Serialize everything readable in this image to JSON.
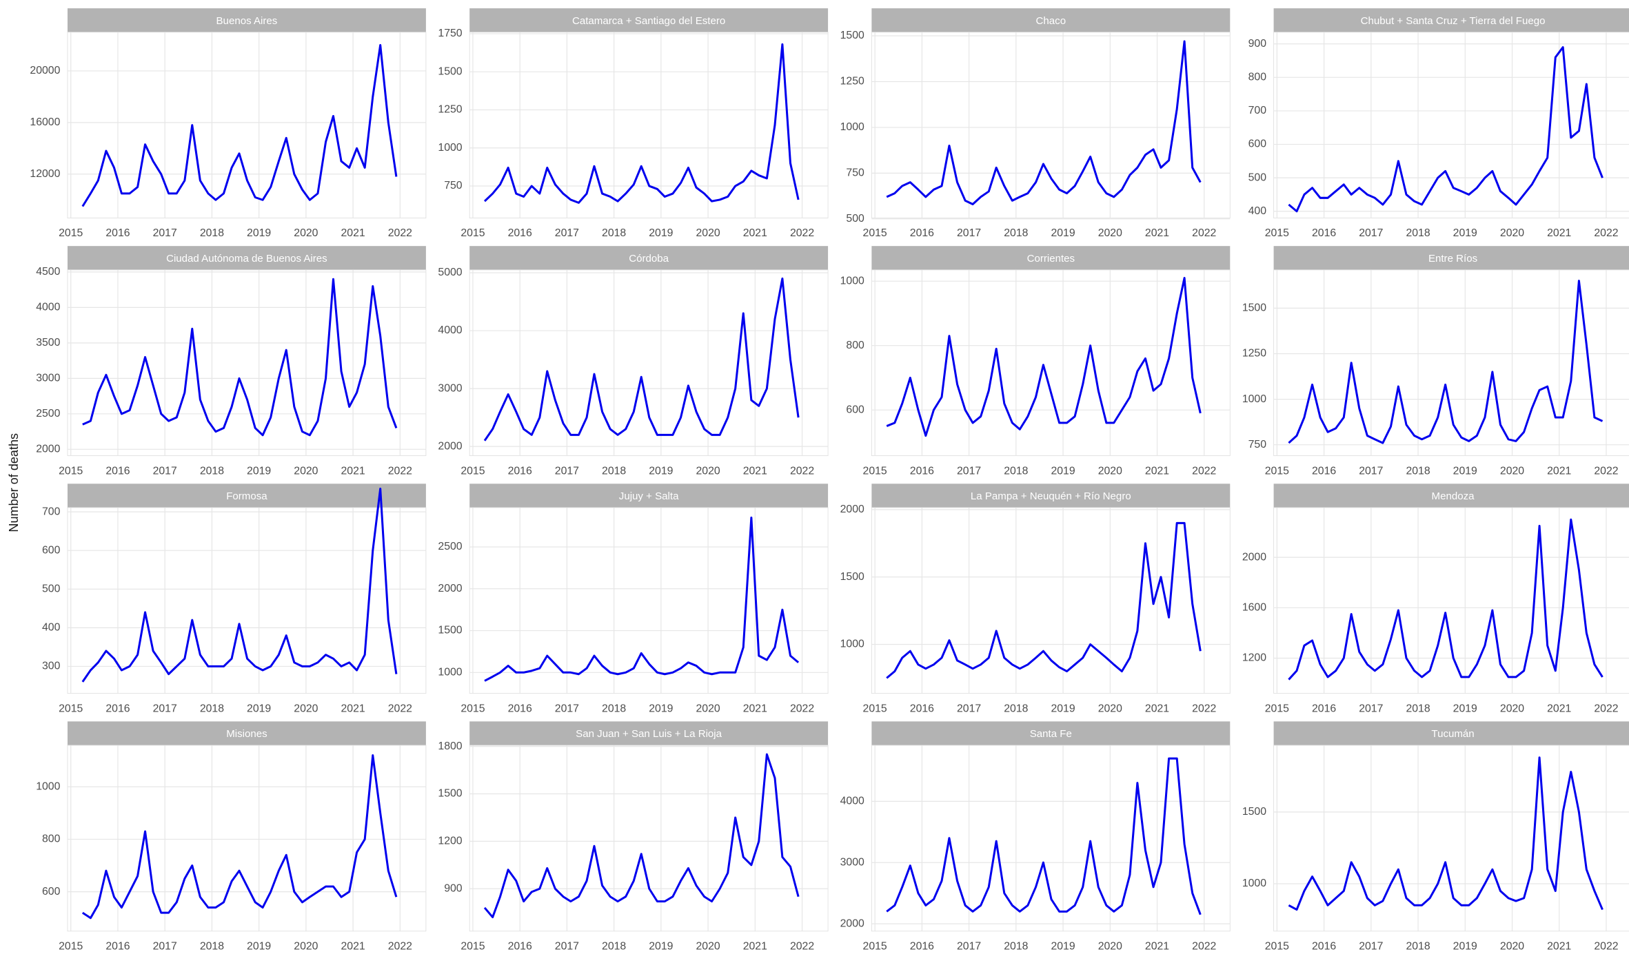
{
  "chart_data": {
    "type": "line",
    "y_label": "Number of deaths",
    "color": "#0000ee",
    "grid": true,
    "x": [
      2015.25,
      2015.42,
      2015.58,
      2015.75,
      2015.92,
      2016.08,
      2016.25,
      2016.42,
      2016.58,
      2016.75,
      2016.92,
      2017.08,
      2017.25,
      2017.42,
      2017.58,
      2017.75,
      2017.92,
      2018.08,
      2018.25,
      2018.42,
      2018.58,
      2018.75,
      2018.92,
      2019.08,
      2019.25,
      2019.42,
      2019.58,
      2019.75,
      2019.92,
      2020.08,
      2020.25,
      2020.42,
      2020.58,
      2020.75,
      2020.92,
      2021.08,
      2021.25,
      2021.42,
      2021.58,
      2021.75,
      2021.92
    ],
    "xlim": [
      2014.93,
      2022.55
    ],
    "xticks": [
      2015,
      2016,
      2017,
      2018,
      2019,
      2020,
      2021,
      2022
    ],
    "panels": [
      {
        "title": "Buenos Aires",
        "ylim": [
          8600,
          23000
        ],
        "yticks": [
          12000,
          16000,
          20000
        ],
        "values": [
          9500,
          10500,
          11500,
          13800,
          12500,
          10500,
          10500,
          11000,
          14300,
          13000,
          12000,
          10500,
          10500,
          11500,
          15800,
          11500,
          10500,
          10000,
          10500,
          12500,
          13600,
          11500,
          10200,
          10000,
          11000,
          13000,
          14800,
          12000,
          10800,
          10000,
          10500,
          14500,
          16500,
          13000,
          12500,
          14000,
          12500,
          18000,
          22000,
          16000,
          11800
        ]
      },
      {
        "title": "Catamarca + Santiago del Estero",
        "ylim": [
          540,
          1760
        ],
        "yticks": [
          750,
          1000,
          1250,
          1500,
          1750
        ],
        "values": [
          650,
          700,
          760,
          870,
          700,
          680,
          750,
          700,
          870,
          760,
          700,
          660,
          640,
          700,
          880,
          700,
          680,
          650,
          700,
          760,
          880,
          750,
          730,
          680,
          700,
          770,
          870,
          740,
          700,
          650,
          660,
          680,
          750,
          780,
          850,
          820,
          800,
          1150,
          1680,
          900,
          660
        ]
      },
      {
        "title": "Chaco",
        "ylim": [
          505,
          1520
        ],
        "yticks": [
          500,
          750,
          1000,
          1250,
          1500
        ],
        "values": [
          620,
          640,
          680,
          700,
          660,
          620,
          660,
          680,
          900,
          700,
          600,
          580,
          620,
          650,
          780,
          680,
          600,
          620,
          640,
          700,
          800,
          720,
          660,
          640,
          680,
          760,
          840,
          700,
          640,
          620,
          660,
          740,
          780,
          850,
          880,
          780,
          820,
          1100,
          1470,
          780,
          700
        ]
      },
      {
        "title": "Chubut + Santa Cruz + Tierra del Fuego",
        "ylim": [
          380,
          935
        ],
        "yticks": [
          400,
          500,
          600,
          700,
          800,
          900
        ],
        "values": [
          420,
          400,
          450,
          470,
          440,
          440,
          460,
          480,
          450,
          470,
          450,
          440,
          420,
          450,
          550,
          450,
          430,
          420,
          460,
          500,
          520,
          470,
          460,
          450,
          470,
          500,
          520,
          460,
          440,
          420,
          450,
          480,
          520,
          560,
          860,
          890,
          620,
          640,
          780,
          560,
          500
        ]
      },
      {
        "title": "Ciudad Autónoma de Buenos Aires",
        "ylim": [
          1910,
          4530
        ],
        "yticks": [
          2000,
          2500,
          3000,
          3500,
          4000,
          4500
        ],
        "values": [
          2350,
          2400,
          2800,
          3050,
          2750,
          2500,
          2550,
          2900,
          3300,
          2900,
          2500,
          2400,
          2450,
          2800,
          3700,
          2700,
          2400,
          2250,
          2300,
          2600,
          3000,
          2700,
          2300,
          2200,
          2450,
          3000,
          3400,
          2600,
          2250,
          2200,
          2400,
          3000,
          4400,
          3100,
          2600,
          2800,
          3200,
          4300,
          3600,
          2600,
          2300
        ]
      },
      {
        "title": "Córdoba",
        "ylim": [
          1840,
          5050
        ],
        "yticks": [
          2000,
          3000,
          4000,
          5000
        ],
        "values": [
          2100,
          2300,
          2600,
          2900,
          2600,
          2300,
          2200,
          2500,
          3300,
          2800,
          2400,
          2200,
          2200,
          2500,
          3250,
          2600,
          2300,
          2200,
          2300,
          2600,
          3200,
          2500,
          2200,
          2200,
          2200,
          2500,
          3050,
          2600,
          2300,
          2200,
          2200,
          2500,
          3000,
          4300,
          2800,
          2700,
          3000,
          4200,
          4900,
          3500,
          2500
        ]
      },
      {
        "title": "Corrientes",
        "ylim": [
          458,
          1035
        ],
        "yticks": [
          600,
          800,
          1000
        ],
        "values": [
          550,
          560,
          620,
          700,
          600,
          520,
          600,
          640,
          830,
          680,
          600,
          560,
          580,
          660,
          790,
          620,
          560,
          540,
          580,
          640,
          740,
          650,
          560,
          560,
          580,
          680,
          800,
          660,
          560,
          560,
          600,
          640,
          720,
          760,
          660,
          680,
          760,
          900,
          1010,
          700,
          590
        ]
      },
      {
        "title": "Entre Ríos",
        "ylim": [
          690,
          1710
        ],
        "yticks": [
          750,
          1000,
          1250,
          1500
        ],
        "values": [
          760,
          800,
          900,
          1080,
          900,
          820,
          840,
          900,
          1200,
          950,
          800,
          780,
          760,
          850,
          1070,
          860,
          800,
          780,
          800,
          900,
          1080,
          860,
          790,
          770,
          800,
          900,
          1150,
          860,
          780,
          770,
          820,
          950,
          1050,
          1070,
          900,
          900,
          1100,
          1650,
          1300,
          900,
          880
        ]
      },
      {
        "title": "Formosa",
        "ylim": [
          230,
          711
        ],
        "yticks": [
          300,
          400,
          500,
          600,
          700
        ],
        "values": [
          260,
          290,
          310,
          340,
          320,
          290,
          300,
          330,
          440,
          340,
          310,
          280,
          300,
          320,
          420,
          330,
          300,
          300,
          300,
          320,
          410,
          320,
          300,
          290,
          300,
          330,
          380,
          310,
          300,
          300,
          310,
          330,
          320,
          300,
          310,
          290,
          330,
          600,
          760,
          420,
          280
        ]
      },
      {
        "title": "Jujuy + Salta",
        "ylim": [
          750,
          2970
        ],
        "yticks": [
          1000,
          1500,
          2000,
          2500
        ],
        "values": [
          900,
          950,
          1000,
          1080,
          1000,
          1000,
          1020,
          1050,
          1200,
          1100,
          1000,
          1000,
          980,
          1050,
          1200,
          1080,
          1000,
          980,
          1000,
          1050,
          1230,
          1100,
          1000,
          980,
          1000,
          1050,
          1120,
          1080,
          1000,
          980,
          1000,
          1000,
          1000,
          1300,
          2850,
          1200,
          1150,
          1300,
          1750,
          1200,
          1120
        ]
      },
      {
        "title": "La Pampa + Neuquén + Río Negro",
        "ylim": [
          636,
          2015
        ],
        "yticks": [
          1000,
          1500,
          2000
        ],
        "values": [
          750,
          800,
          900,
          950,
          850,
          820,
          850,
          900,
          1030,
          880,
          850,
          820,
          850,
          900,
          1100,
          900,
          850,
          820,
          850,
          900,
          950,
          880,
          830,
          800,
          850,
          900,
          1000,
          950,
          900,
          850,
          800,
          900,
          1100,
          1750,
          1300,
          1500,
          1200,
          1900,
          1900,
          1300,
          950
        ]
      },
      {
        "title": "Mendoza",
        "ylim": [
          920,
          2395
        ],
        "yticks": [
          1200,
          1600,
          2000
        ],
        "values": [
          1030,
          1100,
          1300,
          1340,
          1150,
          1050,
          1100,
          1200,
          1550,
          1250,
          1150,
          1100,
          1150,
          1350,
          1580,
          1200,
          1100,
          1050,
          1100,
          1300,
          1560,
          1200,
          1050,
          1050,
          1150,
          1300,
          1580,
          1150,
          1050,
          1050,
          1100,
          1400,
          2250,
          1300,
          1100,
          1600,
          2300,
          1900,
          1400,
          1150,
          1050
        ]
      },
      {
        "title": "Misiones",
        "ylim": [
          450,
          1158
        ],
        "yticks": [
          600,
          800,
          1000
        ],
        "values": [
          520,
          500,
          550,
          680,
          580,
          540,
          600,
          660,
          830,
          600,
          520,
          520,
          560,
          650,
          700,
          580,
          540,
          540,
          560,
          640,
          680,
          620,
          560,
          540,
          600,
          680,
          740,
          600,
          560,
          580,
          600,
          620,
          620,
          580,
          600,
          750,
          800,
          1120,
          900,
          680,
          580
        ]
      },
      {
        "title": "San Juan + San Luis + La Rioja",
        "ylim": [
          632,
          1807
        ],
        "yticks": [
          900,
          1200,
          1500,
          1800
        ],
        "values": [
          780,
          720,
          850,
          1020,
          950,
          820,
          880,
          900,
          1030,
          900,
          850,
          820,
          850,
          950,
          1170,
          920,
          850,
          820,
          850,
          950,
          1120,
          900,
          820,
          820,
          850,
          950,
          1030,
          920,
          850,
          820,
          900,
          1000,
          1350,
          1100,
          1050,
          1200,
          1750,
          1600,
          1100,
          1040,
          850
        ]
      },
      {
        "title": "Santa Fe",
        "ylim": [
          1880,
          4915
        ],
        "yticks": [
          2000,
          3000,
          4000
        ],
        "values": [
          2200,
          2300,
          2600,
          2950,
          2500,
          2300,
          2400,
          2700,
          3400,
          2700,
          2300,
          2200,
          2300,
          2600,
          3350,
          2500,
          2300,
          2200,
          2300,
          2600,
          3000,
          2400,
          2200,
          2200,
          2300,
          2600,
          3350,
          2600,
          2300,
          2200,
          2300,
          2800,
          4300,
          3200,
          2600,
          3000,
          4700,
          4700,
          3300,
          2500,
          2150
        ]
      },
      {
        "title": "Tucumán",
        "ylim": [
          670,
          1965
        ],
        "yticks": [
          1000,
          1500
        ],
        "values": [
          850,
          820,
          950,
          1050,
          950,
          850,
          900,
          950,
          1150,
          1050,
          900,
          850,
          880,
          1000,
          1100,
          900,
          850,
          850,
          900,
          1000,
          1150,
          900,
          850,
          850,
          900,
          1000,
          1100,
          950,
          900,
          880,
          900,
          1100,
          1880,
          1100,
          950,
          1500,
          1780,
          1500,
          1100,
          950,
          820
        ]
      }
    ]
  }
}
